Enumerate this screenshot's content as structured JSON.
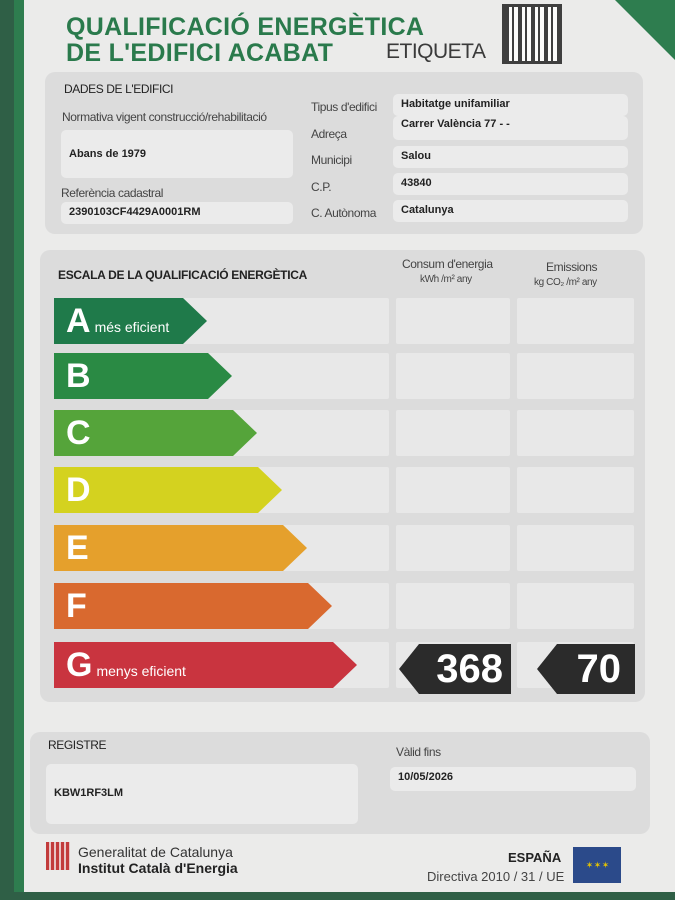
{
  "header": {
    "title_line1": "QUALIFICACIÓ ENERGÈTICA",
    "title_line2": "DE L'EDIFICI ACABAT",
    "label": "ETIQUETA"
  },
  "building": {
    "section_title": "DADES DE L'EDIFICI",
    "regulation_label": "Normativa vigent construcció/rehabilitació",
    "regulation_value": "Abans de 1979",
    "cadastral_label": "Referència cadastral",
    "cadastral_value": "2390103CF4429A0001RM",
    "fields": [
      {
        "label": "Tipus d'edifici",
        "value": "Habitatge unifamiliar"
      },
      {
        "label": "Adreça",
        "value": "Carrer València 77 - -"
      },
      {
        "label": "Municipi",
        "value": "Salou"
      },
      {
        "label": "C.P.",
        "value": "43840"
      },
      {
        "label": "C. Autònoma",
        "value": "Catalunya"
      }
    ]
  },
  "scale": {
    "title": "ESCALA DE LA QUALIFICACIÓ ENERGÈTICA",
    "consumption_header": "Consum d'energia",
    "consumption_unit": "kWh /m² any",
    "emissions_header": "Emissions",
    "emissions_unit": "kg CO₂ /m² any",
    "classes": [
      {
        "letter": "A",
        "caption": "més eficient",
        "color": "#1f7a4a"
      },
      {
        "letter": "B",
        "caption": "",
        "color": "#2a8a44"
      },
      {
        "letter": "C",
        "caption": "",
        "color": "#55a43a"
      },
      {
        "letter": "D",
        "caption": "",
        "color": "#d4d21f"
      },
      {
        "letter": "E",
        "caption": "",
        "color": "#e5a02c"
      },
      {
        "letter": "F",
        "caption": "",
        "color": "#d9692f"
      },
      {
        "letter": "G",
        "caption": "menys eficient",
        "color": "#c9343f"
      }
    ],
    "rating": "G",
    "consumption_value": "368",
    "emissions_value": "70"
  },
  "registry": {
    "label": "REGISTRE",
    "value": "KBW1RF3LM",
    "valid_label": "Vàlid fins",
    "valid_value": "10/05/2026"
  },
  "footer": {
    "org1": "Generalitat de Catalunya",
    "org2": "Institut Català d'Energia",
    "country": "ESPAÑA",
    "directive": "Directiva 2010 / 31 / UE"
  }
}
